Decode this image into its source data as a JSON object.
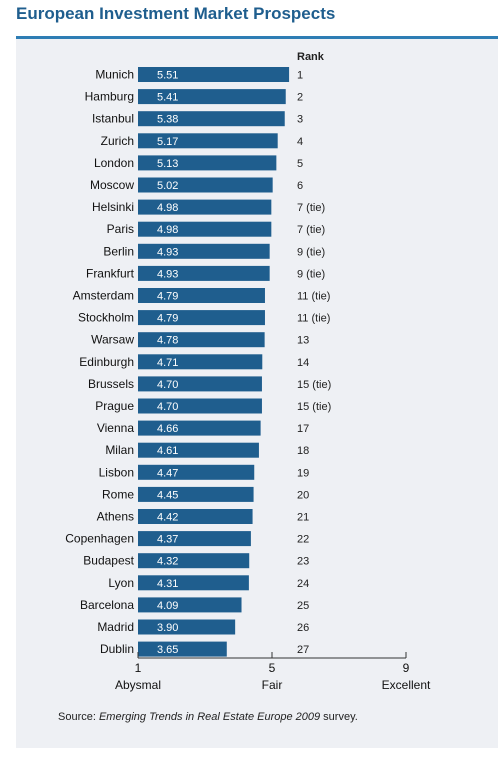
{
  "header": {
    "title": "European Investment Market Prospects"
  },
  "chart_data": {
    "type": "bar",
    "orientation": "horizontal",
    "title": "European Investment Market Prospects",
    "rank_header": "Rank",
    "categories": [
      "Munich",
      "Hamburg",
      "Istanbul",
      "Zurich",
      "London",
      "Moscow",
      "Helsinki",
      "Paris",
      "Berlin",
      "Frankfurt",
      "Amsterdam",
      "Stockholm",
      "Warsaw",
      "Edinburgh",
      "Brussels",
      "Prague",
      "Vienna",
      "Milan",
      "Lisbon",
      "Rome",
      "Athens",
      "Copenhagen",
      "Budapest",
      "Lyon",
      "Barcelona",
      "Madrid",
      "Dublin"
    ],
    "values": [
      5.51,
      5.41,
      5.38,
      5.17,
      5.13,
      5.02,
      4.98,
      4.98,
      4.93,
      4.93,
      4.79,
      4.79,
      4.78,
      4.71,
      4.7,
      4.7,
      4.66,
      4.61,
      4.47,
      4.45,
      4.42,
      4.37,
      4.32,
      4.31,
      4.09,
      3.9,
      3.65
    ],
    "value_labels": [
      "5.51",
      "5.41",
      "5.38",
      "5.17",
      "5.13",
      "5.02",
      "4.98",
      "4.98",
      "4.93",
      "4.93",
      "4.79",
      "4.79",
      "4.78",
      "4.71",
      "4.70",
      "4.70",
      "4.66",
      "4.61",
      "4.47",
      "4.45",
      "4.42",
      "4.37",
      "4.32",
      "4.31",
      "4.09",
      "3.90",
      "3.65"
    ],
    "ranks": [
      "1",
      "2",
      "3",
      "4",
      "5",
      "6",
      "7 (tie)",
      "7 (tie)",
      "9 (tie)",
      "9 (tie)",
      "11 (tie)",
      "11 (tie)",
      "13",
      "14",
      "15 (tie)",
      "15 (tie)",
      "17",
      "18",
      "19",
      "20",
      "21",
      "22",
      "23",
      "24",
      "25",
      "26",
      "27"
    ],
    "xlim": [
      1,
      9
    ],
    "ticks": [
      {
        "value": 1,
        "label": "1",
        "desc": "Abysmal"
      },
      {
        "value": 5,
        "label": "5",
        "desc": "Fair"
      },
      {
        "value": 9,
        "label": "9",
        "desc": "Excellent"
      }
    ],
    "bar_color": "#1f5e8e",
    "grid": false
  },
  "source": {
    "prefix": "Source: ",
    "italic": "Emerging Trends in Real Estate Europe 2009",
    "suffix": " survey."
  }
}
